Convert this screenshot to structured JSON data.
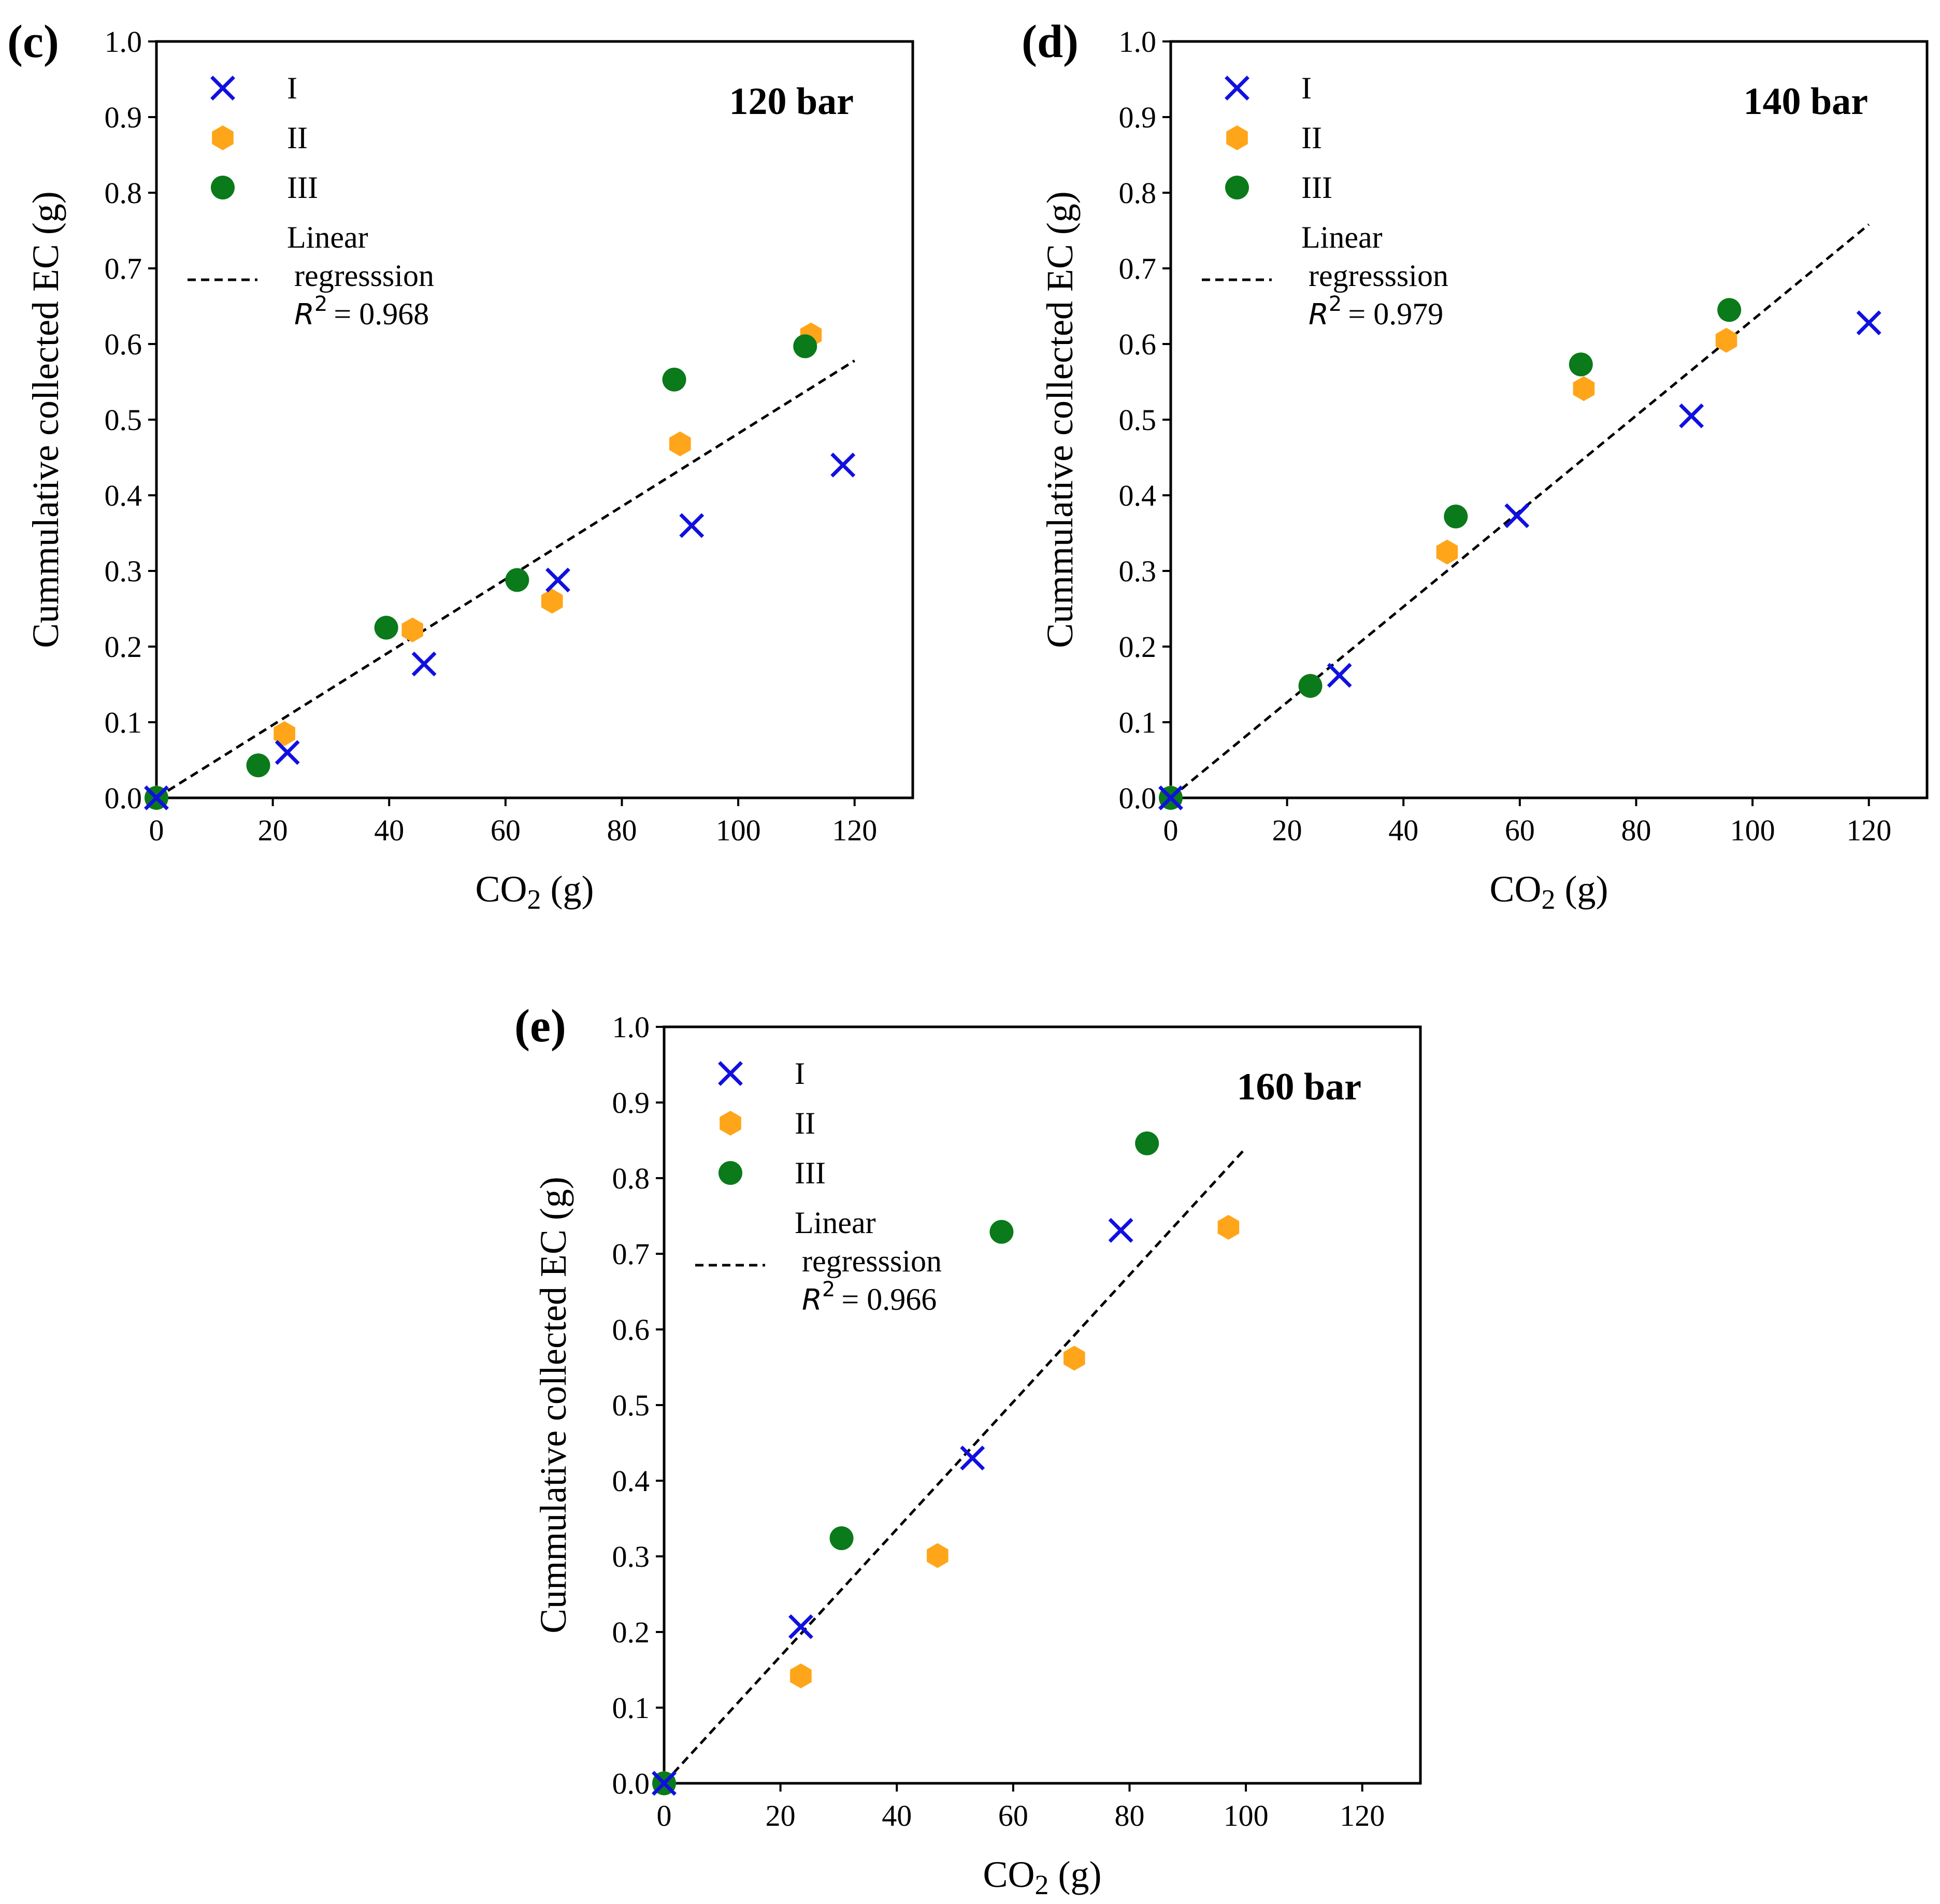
{
  "figure": {
    "r2_prefix": "R",
    "r2_power": "2"
  },
  "chart_data": [
    {
      "type": "scatter",
      "panel": "(c)",
      "pressure_label": "120 bar",
      "xlabel_main": "CO",
      "xlabel_sub": "2",
      "xlabel_unit": " (g)",
      "ylabel": "Cummulative collected EC (g)",
      "xlim": [
        0,
        130
      ],
      "ylim": [
        0,
        1.0
      ],
      "xticks": [
        "0",
        "20",
        "40",
        "60",
        "80",
        "100",
        "120"
      ],
      "xtick_values": [
        0,
        20,
        40,
        60,
        80,
        100,
        120
      ],
      "yticks": [
        "0.0",
        "0.1",
        "0.2",
        "0.3",
        "0.4",
        "0.5",
        "0.6",
        "0.7",
        "0.8",
        "0.9",
        "1.0"
      ],
      "ytick_values": [
        0,
        0.1,
        0.2,
        0.3,
        0.4,
        0.5,
        0.6,
        0.7,
        0.8,
        0.9,
        1.0
      ],
      "legend": {
        "series_I": "I",
        "series_II": "II",
        "series_III": "III",
        "regression_line1": "Linear",
        "regression_line2": "regresssion",
        "r2_value": "= 0.968"
      },
      "series": [
        {
          "name": "I",
          "marker": "x",
          "color": "#1010e0",
          "points": [
            [
              0,
              0
            ],
            [
              22.5,
              0.06
            ],
            [
              46,
              0.177
            ],
            [
              69,
              0.288
            ],
            [
              92,
              0.36
            ],
            [
              118,
              0.44
            ]
          ]
        },
        {
          "name": "II",
          "marker": "hexagon",
          "color": "#ffa51a",
          "points": [
            [
              0,
              0
            ],
            [
              22,
              0.085
            ],
            [
              44,
              0.222
            ],
            [
              68,
              0.26
            ],
            [
              90,
              0.468
            ],
            [
              112.5,
              0.612
            ]
          ]
        },
        {
          "name": "III",
          "marker": "circle",
          "color": "#0a7a1a",
          "points": [
            [
              0,
              0
            ],
            [
              17.5,
              0.043
            ],
            [
              39.5,
              0.225
            ],
            [
              62,
              0.288
            ],
            [
              89,
              0.553
            ],
            [
              111.5,
              0.597
            ]
          ]
        }
      ],
      "regression": {
        "x": [
          0,
          120
        ],
        "y": [
          0,
          0.578
        ],
        "r2": 0.968
      }
    },
    {
      "type": "scatter",
      "panel": "(d)",
      "pressure_label": "140 bar",
      "xlabel_main": "CO",
      "xlabel_sub": "2",
      "xlabel_unit": " (g)",
      "ylabel": "Cummulative collected EC (g)",
      "xlim": [
        0,
        130
      ],
      "ylim": [
        0,
        1.0
      ],
      "xticks": [
        "0",
        "20",
        "40",
        "60",
        "80",
        "100",
        "120"
      ],
      "xtick_values": [
        0,
        20,
        40,
        60,
        80,
        100,
        120
      ],
      "yticks": [
        "0.0",
        "0.1",
        "0.2",
        "0.3",
        "0.4",
        "0.5",
        "0.6",
        "0.7",
        "0.8",
        "0.9",
        "1.0"
      ],
      "ytick_values": [
        0,
        0.1,
        0.2,
        0.3,
        0.4,
        0.5,
        0.6,
        0.7,
        0.8,
        0.9,
        1.0
      ],
      "legend": {
        "series_I": "I",
        "series_II": "II",
        "series_III": "III",
        "regression_line1": "Linear",
        "regression_line2": "regresssion",
        "r2_value": "= 0.979"
      },
      "series": [
        {
          "name": "I",
          "marker": "x",
          "color": "#1010e0",
          "points": [
            [
              0,
              0
            ],
            [
              29,
              0.162
            ],
            [
              59.5,
              0.373
            ],
            [
              89.5,
              0.505
            ],
            [
              120,
              0.628
            ]
          ]
        },
        {
          "name": "II",
          "marker": "hexagon",
          "color": "#ffa51a",
          "points": [
            [
              0,
              0
            ],
            [
              24,
              0.148
            ],
            [
              47.5,
              0.325
            ],
            [
              71,
              0.541
            ],
            [
              95.5,
              0.605
            ]
          ]
        },
        {
          "name": "III",
          "marker": "circle",
          "color": "#0a7a1a",
          "points": [
            [
              0,
              0
            ],
            [
              24,
              0.148
            ],
            [
              49,
              0.372
            ],
            [
              70.5,
              0.573
            ],
            [
              96,
              0.645
            ]
          ]
        }
      ],
      "regression": {
        "x": [
          0,
          120
        ],
        "y": [
          0,
          0.758
        ],
        "r2": 0.979
      }
    },
    {
      "type": "scatter",
      "panel": "(e)",
      "pressure_label": "160 bar",
      "xlabel_main": "CO",
      "xlabel_sub": "2",
      "xlabel_unit": " (g)",
      "ylabel": "Cummulative collected EC (g)",
      "xlim": [
        0,
        130
      ],
      "ylim": [
        0,
        1.0
      ],
      "xticks": [
        "0",
        "20",
        "40",
        "60",
        "80",
        "100",
        "120"
      ],
      "xtick_values": [
        0,
        20,
        40,
        60,
        80,
        100,
        120
      ],
      "yticks": [
        "0.0",
        "0.1",
        "0.2",
        "0.3",
        "0.4",
        "0.5",
        "0.6",
        "0.7",
        "0.8",
        "0.9",
        "1.0"
      ],
      "ytick_values": [
        0,
        0.1,
        0.2,
        0.3,
        0.4,
        0.5,
        0.6,
        0.7,
        0.8,
        0.9,
        1.0
      ],
      "legend": {
        "series_I": "I",
        "series_II": "II",
        "series_III": "III",
        "regression_line1": "Linear",
        "regression_line2": "regresssion",
        "r2_value": "= 0.966"
      },
      "series": [
        {
          "name": "I",
          "marker": "x",
          "color": "#1010e0",
          "points": [
            [
              0,
              0
            ],
            [
              23.5,
              0.207
            ],
            [
              53,
              0.43
            ],
            [
              78.5,
              0.731
            ]
          ]
        },
        {
          "name": "II",
          "marker": "hexagon",
          "color": "#ffa51a",
          "points": [
            [
              0,
              0
            ],
            [
              23.5,
              0.142
            ],
            [
              47,
              0.301
            ],
            [
              70.5,
              0.562
            ],
            [
              97,
              0.735
            ]
          ]
        },
        {
          "name": "III",
          "marker": "circle",
          "color": "#0a7a1a",
          "points": [
            [
              0,
              0
            ],
            [
              30.5,
              0.324
            ],
            [
              58,
              0.729
            ],
            [
              83,
              0.846
            ]
          ]
        }
      ],
      "regression": {
        "x": [
          0,
          100
        ],
        "y": [
          0,
          0.84
        ],
        "r2": 0.966
      }
    }
  ]
}
